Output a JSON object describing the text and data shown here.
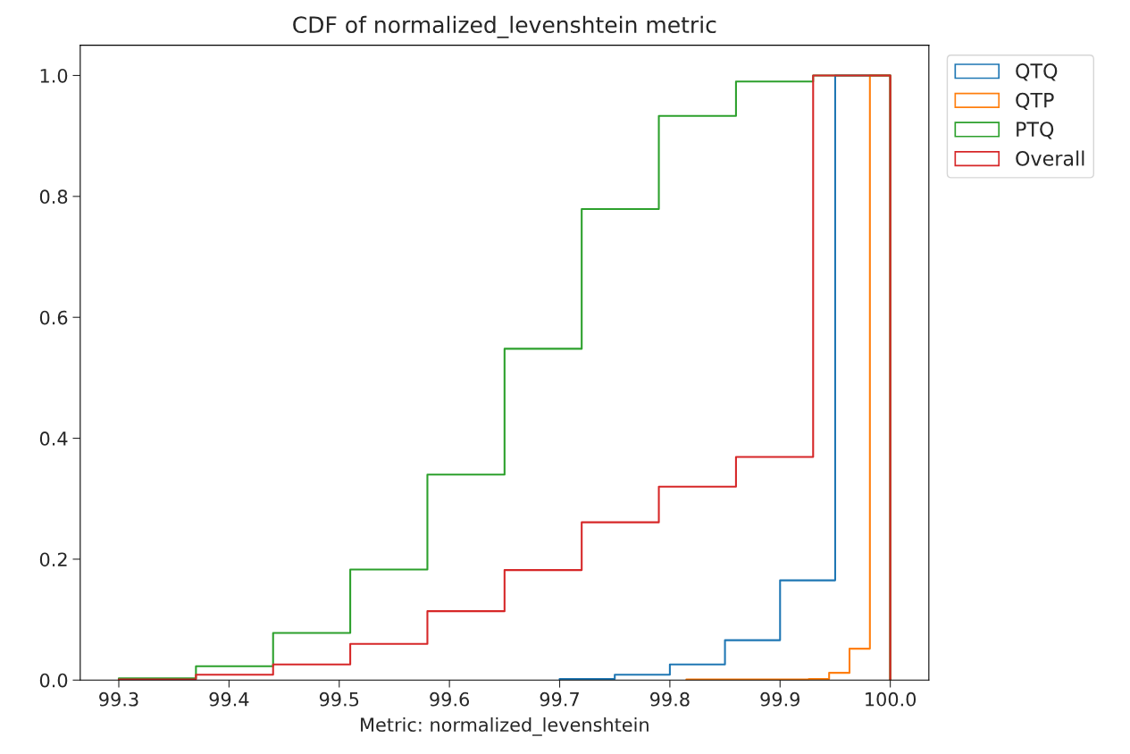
{
  "chart_data": {
    "type": "step",
    "title": "CDF of normalized_levenshtein metric",
    "xlabel": "Metric: normalized_levenshtein",
    "series": [
      {
        "name": "QTQ",
        "color": "#1f77b4",
        "x": [
          99.7,
          99.7,
          99.75,
          99.8,
          99.85,
          99.9,
          99.95,
          100.0,
          100.0
        ],
        "values": [
          0,
          0.002,
          0.009,
          0.026,
          0.066,
          0.165,
          1.0,
          1.0,
          0
        ]
      },
      {
        "name": "QTP",
        "color": "#ff7f0e",
        "x": [
          99.815,
          99.815,
          99.8335,
          99.852,
          99.8705,
          99.889,
          99.9075,
          99.926,
          99.9445,
          99.963,
          99.9815,
          100.0,
          100.0
        ],
        "values": [
          0,
          0.001,
          0.001,
          0.001,
          0.001,
          0.001,
          0.001,
          0.002,
          0.012,
          0.052,
          1.0,
          1.0,
          0
        ]
      },
      {
        "name": "PTQ",
        "color": "#2ca02c",
        "x": [
          99.3,
          99.3,
          99.37,
          99.44,
          99.51,
          99.58,
          99.65,
          99.72,
          99.79,
          99.86,
          99.93,
          100.0,
          100.0
        ],
        "values": [
          0,
          0.003,
          0.023,
          0.078,
          0.183,
          0.34,
          0.548,
          0.779,
          0.933,
          0.99,
          1.0,
          1.0,
          0
        ]
      },
      {
        "name": "Overall",
        "color": "#d62728",
        "x": [
          99.3,
          99.3,
          99.37,
          99.44,
          99.51,
          99.58,
          99.65,
          99.72,
          99.79,
          99.86,
          99.93,
          100.0,
          100.0
        ],
        "values": [
          0,
          0.001,
          0.009,
          0.026,
          0.06,
          0.114,
          0.182,
          0.261,
          0.32,
          0.369,
          1.0,
          1.0,
          0
        ]
      }
    ],
    "xlim": [
      99.265,
      100.035
    ],
    "xticks": [
      {
        "value": 99.3,
        "label": "99.3"
      },
      {
        "value": 99.4,
        "label": "99.4"
      },
      {
        "value": 99.5,
        "label": "99.5"
      },
      {
        "value": 99.6,
        "label": "99.6"
      },
      {
        "value": 99.7,
        "label": "99.7"
      },
      {
        "value": 99.8,
        "label": "99.8"
      },
      {
        "value": 99.9,
        "label": "99.9"
      },
      {
        "value": 100.0,
        "label": "100.0"
      }
    ],
    "ylim": [
      0,
      1.05
    ],
    "yticks": [
      {
        "value": 0,
        "label": "0.0"
      },
      {
        "value": 0.2,
        "label": "0.2"
      },
      {
        "value": 0.4,
        "label": "0.4"
      },
      {
        "value": 0.6,
        "label": "0.6"
      },
      {
        "value": 0.8,
        "label": "0.8"
      },
      {
        "value": 1.0,
        "label": "1.0"
      }
    ],
    "grid": false,
    "legend": "top right"
  }
}
